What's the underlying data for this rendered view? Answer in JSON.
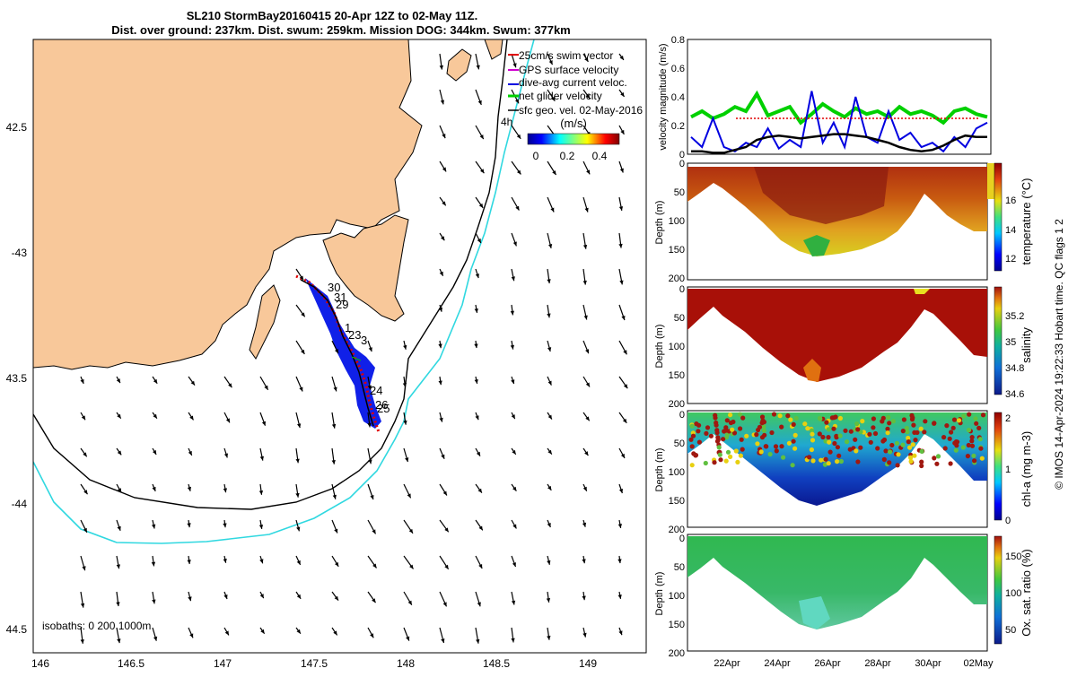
{
  "title": {
    "line1": "SL210 StormBay20160415 20-Apr 12Z to 02-May 11Z.",
    "line2": "Dist. over ground: 237km. Dist. swum: 259km. Mission DOG: 344km. Swum: 377km"
  },
  "footer_right": "© IMOS 14-Apr-2024 19:22:33 Hobart time. QC flags 1  2",
  "map": {
    "lon_ticks": [
      "146",
      "146.5",
      "147",
      "147.5",
      "148",
      "148.5",
      "149"
    ],
    "lat_ticks": [
      "42.5",
      "-43",
      "43.5",
      "-44",
      "44.5"
    ],
    "isobath_label": "isobaths: 0   200  1000m",
    "legend": {
      "items": [
        {
          "label": "25cm/s swim vector",
          "color": "#e00000"
        },
        {
          "label": "GPS surface velocity",
          "color": "#d000d0"
        },
        {
          "label": "dive-avg current veloc.",
          "color": "#0000e0"
        },
        {
          "label": "net glider velocity",
          "color": "#00d000"
        },
        {
          "label": "sfc geo. vel. 02-May-2016",
          "color": "#000000"
        }
      ],
      "extra_label": "4h"
    },
    "colorbar": {
      "title": "(m/s)",
      "ticks": [
        "0",
        "0.2",
        "0.4"
      ]
    },
    "track_day_labels": [
      "30",
      "31",
      "29",
      "1",
      "23",
      "3",
      "24",
      "26",
      "25"
    ],
    "land_color": "#f8c89a",
    "isobath_200_color": "#000000",
    "isobath_1000_color": "#30d8e0"
  },
  "time_ticks": [
    "22Apr",
    "24Apr",
    "26Apr",
    "28Apr",
    "30Apr",
    "02May"
  ],
  "panels": [
    {
      "ylabel": "velocity magnitude (m/s)",
      "yticks": [
        "0",
        "0.2",
        "0.4",
        "0.6",
        "0.8"
      ]
    },
    {
      "ylabel": "Depth (m)",
      "yticks": [
        "0",
        "50",
        "100",
        "150",
        "200"
      ],
      "cbar_label": "temperature (°C)",
      "cbar_ticks": [
        "12",
        "14",
        "16"
      ]
    },
    {
      "ylabel": "Depth (m)",
      "yticks": [
        "0",
        "50",
        "100",
        "150",
        "200"
      ],
      "cbar_label": "salinity",
      "cbar_ticks": [
        "34.6",
        "34.8",
        "35",
        "35.2"
      ]
    },
    {
      "ylabel": "Depth (m)",
      "yticks": [
        "0",
        "50",
        "100",
        "150",
        "200"
      ],
      "cbar_label": "chl-a (mg m-3)",
      "cbar_ticks": [
        "0",
        "1",
        "2"
      ]
    },
    {
      "ylabel": "Depth (m)",
      "yticks": [
        "0",
        "50",
        "100",
        "150",
        "200"
      ],
      "cbar_label": "Ox. sat. ratio (%)",
      "cbar_ticks": [
        "50",
        "100",
        "150"
      ]
    }
  ],
  "chart_data": [
    {
      "type": "line",
      "title": "",
      "ylabel": "velocity magnitude (m/s)",
      "ylim": [
        0,
        0.8
      ],
      "x_days_labels": [
        "22Apr",
        "24Apr",
        "26Apr",
        "28Apr",
        "30Apr",
        "02May"
      ],
      "series": [
        {
          "name": "net glider velocity",
          "color": "#00d000",
          "values": [
            0.26,
            0.3,
            0.25,
            0.28,
            0.33,
            0.3,
            0.42,
            0.27,
            0.3,
            0.33,
            0.22,
            0.28,
            0.35,
            0.3,
            0.26,
            0.32,
            0.28,
            0.3,
            0.26,
            0.33,
            0.28,
            0.3,
            0.27,
            0.22,
            0.3,
            0.32,
            0.28,
            0.26
          ]
        },
        {
          "name": "dive-avg current veloc.",
          "color": "#0000e0",
          "values": [
            0.12,
            0.05,
            0.25,
            0.05,
            0.02,
            0.08,
            0.05,
            0.18,
            0.04,
            0.1,
            0.05,
            0.44,
            0.08,
            0.22,
            0.05,
            0.4,
            0.12,
            0.08,
            0.3,
            0.1,
            0.15,
            0.05,
            0.08,
            0.02,
            0.12,
            0.05,
            0.18,
            0.22
          ]
        },
        {
          "name": "sfc geo. vel.",
          "color": "#000000",
          "values": [
            0.02,
            0.02,
            0.01,
            0.01,
            0.03,
            0.05,
            0.1,
            0.12,
            0.13,
            0.12,
            0.11,
            0.12,
            0.13,
            0.14,
            0.14,
            0.13,
            0.12,
            0.1,
            0.08,
            0.05,
            0.03,
            0.02,
            0.03,
            0.06,
            0.1,
            0.13,
            0.12,
            0.12
          ]
        }
      ]
    },
    {
      "type": "heatmap",
      "ylabel": "Depth (m)",
      "ylim": [
        0,
        200
      ],
      "cbar_label": "temperature (°C)",
      "clim": [
        11,
        18
      ]
    },
    {
      "type": "heatmap",
      "ylabel": "Depth (m)",
      "ylim": [
        0,
        200
      ],
      "cbar_label": "salinity",
      "clim": [
        34.6,
        35.3
      ]
    },
    {
      "type": "heatmap",
      "ylabel": "Depth (m)",
      "ylim": [
        0,
        200
      ],
      "cbar_label": "chl-a (mg m-3)",
      "clim": [
        0,
        2
      ]
    },
    {
      "type": "heatmap",
      "ylabel": "Depth (m)",
      "ylim": [
        0,
        200
      ],
      "cbar_label": "Ox. sat. ratio (%)",
      "clim": [
        30,
        170
      ]
    }
  ]
}
